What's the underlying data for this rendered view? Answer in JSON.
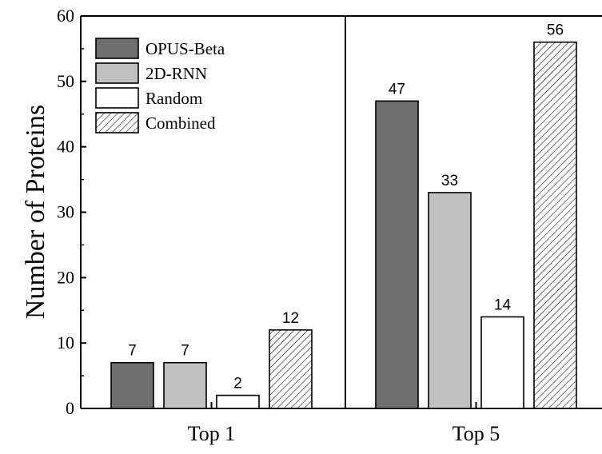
{
  "chart_data": {
    "type": "bar",
    "title": "",
    "xlabel": "",
    "ylabel": "Number of Proteins",
    "ylim": [
      0,
      60
    ],
    "yticks": [
      0,
      10,
      20,
      30,
      40,
      50,
      60
    ],
    "categories": [
      "Top 1",
      "Top 5"
    ],
    "series": [
      {
        "name": "OPUS-Beta",
        "values": [
          7,
          47
        ],
        "color": "#6e6e6e",
        "pattern": "solid"
      },
      {
        "name": "2D-RNN",
        "values": [
          7,
          33
        ],
        "color": "#c0c0c0",
        "pattern": "solid"
      },
      {
        "name": "Random",
        "values": [
          2,
          14
        ],
        "color": "#ffffff",
        "pattern": "solid"
      },
      {
        "name": "Combined",
        "values": [
          12,
          56
        ],
        "color": "#ffffff",
        "pattern": "hatch"
      }
    ],
    "data_labels": true,
    "legend_position": "top-left",
    "grid": false
  }
}
